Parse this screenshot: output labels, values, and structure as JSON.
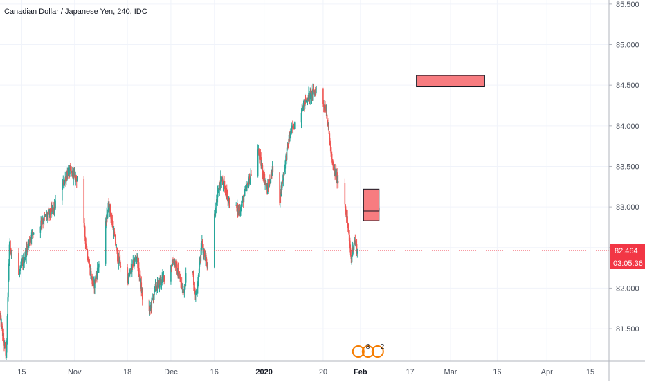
{
  "chart_data": {
    "type": "candlestick",
    "title": "Canadian Dollar / Japanese Yen, 240, IDC",
    "x_tick_labels": [
      "15",
      "Nov",
      "18",
      "Dec",
      "16",
      "2020",
      "20",
      "Feb",
      "17",
      "Mar",
      "16",
      "Apr",
      "15"
    ],
    "x_tick_dates": [
      "2019-10-15",
      "2019-11-01",
      "2019-11-18",
      "2019-12-02",
      "2019-12-16",
      "2020-01-01",
      "2020-01-20",
      "2020-02-01",
      "2020-02-17",
      "2020-03-01",
      "2020-03-16",
      "2020-04-01",
      "2020-04-15"
    ],
    "y_tick_labels": [
      "85.500",
      "85.000",
      "84.500",
      "84.000",
      "83.500",
      "83.000",
      "82.500",
      "82.000",
      "81.500"
    ],
    "y_ticks": [
      85.5,
      85.0,
      84.5,
      84.0,
      83.5,
      83.0,
      82.5,
      82.0,
      81.5
    ],
    "ylim": [
      81.1,
      85.55
    ],
    "xlim": [
      "2019-10-08",
      "2020-04-21"
    ],
    "grid": true,
    "current_price": {
      "value": 82.464,
      "label": "82.464",
      "countdown": "03:05:36",
      "color": "#f23645"
    },
    "colors": {
      "up": "#26a69a",
      "down": "#ef5350",
      "grid": "#f0f3fa",
      "zone_fill": "#f77c80",
      "zone_stroke": "#131722"
    },
    "zones": [
      {
        "x_start": "2020-02-19",
        "x_end": "2020-03-12",
        "y_low": 84.48,
        "y_high": 84.62
      },
      {
        "x_start": "2020-02-02",
        "x_end": "2020-02-07",
        "y_low": 82.83,
        "y_high": 82.98
      },
      {
        "x_start": "2020-02-02",
        "x_end": "2020-02-07",
        "y_low": 82.95,
        "y_high": 83.22
      }
    ],
    "events_badge": {
      "text": "8",
      "count": "2"
    },
    "price_path": [
      [
        "2019-10-08",
        81.65
      ],
      [
        "2019-10-10",
        81.15
      ],
      [
        "2019-10-11",
        82.55
      ],
      [
        "2019-10-14",
        82.15
      ],
      [
        "2019-10-18",
        82.65
      ],
      [
        "2019-10-22",
        82.85
      ],
      [
        "2019-10-25",
        82.95
      ],
      [
        "2019-10-30",
        83.45
      ],
      [
        "2019-11-02",
        83.35
      ],
      [
        "2019-11-05",
        82.45
      ],
      [
        "2019-11-07",
        82.0
      ],
      [
        "2019-11-10",
        82.5
      ],
      [
        "2019-11-12",
        83.05
      ],
      [
        "2019-11-15",
        82.35
      ],
      [
        "2019-11-18",
        82.1
      ],
      [
        "2019-11-21",
        82.4
      ],
      [
        "2019-11-24",
        81.55
      ],
      [
        "2019-11-27",
        82.0
      ],
      [
        "2019-11-30",
        82.15
      ],
      [
        "2019-12-03",
        82.35
      ],
      [
        "2019-12-06",
        81.95
      ],
      [
        "2019-12-08",
        82.45
      ],
      [
        "2019-12-10",
        81.9
      ],
      [
        "2019-12-12",
        82.55
      ],
      [
        "2019-12-14",
        82.25
      ],
      [
        "2019-12-16",
        82.9
      ],
      [
        "2019-12-18",
        83.35
      ],
      [
        "2019-12-21",
        83.05
      ],
      [
        "2019-12-24",
        82.95
      ],
      [
        "2019-12-27",
        83.3
      ],
      [
        "2019-12-30",
        83.7
      ],
      [
        "2020-01-02",
        83.2
      ],
      [
        "2020-01-04",
        83.5
      ],
      [
        "2020-01-06",
        83.1
      ],
      [
        "2020-01-09",
        83.85
      ],
      [
        "2020-01-12",
        84.15
      ],
      [
        "2020-01-15",
        84.35
      ],
      [
        "2020-01-18",
        84.45
      ],
      [
        "2020-01-21",
        84.2
      ],
      [
        "2020-01-23",
        83.5
      ],
      [
        "2020-01-25",
        83.3
      ],
      [
        "2020-01-27",
        83.05
      ],
      [
        "2020-01-28",
        82.75
      ],
      [
        "2020-01-29",
        82.35
      ],
      [
        "2020-01-30",
        82.6
      ],
      [
        "2020-01-31",
        82.46
      ]
    ]
  }
}
